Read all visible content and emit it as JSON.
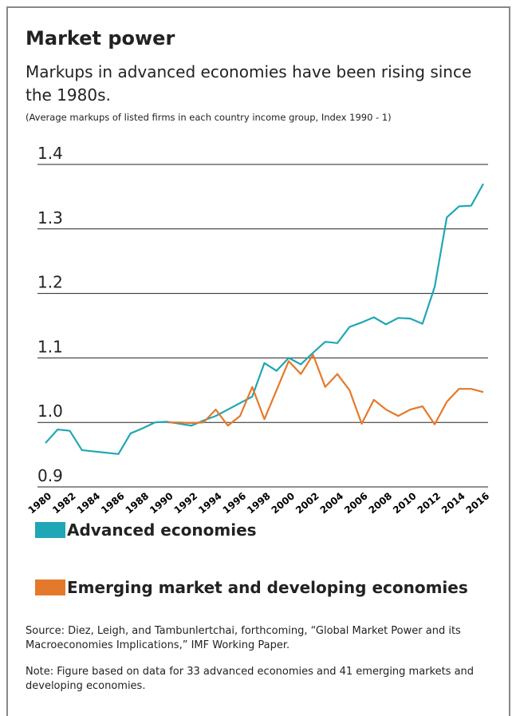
{
  "chart_data": {
    "type": "line",
    "title": "Market power",
    "subtitle": "Markups in advanced economies have been rising since the 1980s.",
    "note": "(Average markups of listed firms in each country income group, Index 1990 - 1)",
    "x": [
      1980,
      1981,
      1982,
      1983,
      1984,
      1985,
      1986,
      1987,
      1988,
      1989,
      1990,
      1991,
      1992,
      1993,
      1994,
      1995,
      1996,
      1997,
      1998,
      1999,
      2000,
      2001,
      2002,
      2003,
      2004,
      2005,
      2006,
      2007,
      2008,
      2009,
      2010,
      2011,
      2012,
      2013,
      2014,
      2015,
      2016
    ],
    "xlim": [
      1980,
      2016
    ],
    "xticks": [
      1980,
      1982,
      1984,
      1986,
      1988,
      1990,
      1992,
      1994,
      1996,
      1998,
      2000,
      2002,
      2004,
      2006,
      2008,
      2010,
      2012,
      2014,
      2016
    ],
    "ylim": [
      0.9,
      1.4
    ],
    "yticks": [
      0.9,
      {
        "value": 1,
        "label": "1.0"
      },
      1.1,
      1.2,
      1.3,
      1.4
    ],
    "grid": true,
    "series": [
      {
        "name": "Advanced economies",
        "color": "#1fa7b5",
        "values": [
          0.968,
          0.989,
          0.987,
          0.957,
          0.955,
          0.953,
          0.951,
          0.983,
          0.991,
          1.0,
          1.001,
          0.998,
          0.995,
          1.003,
          1.01,
          1.02,
          1.03,
          1.04,
          1.092,
          1.08,
          1.1,
          1.09,
          1.108,
          1.125,
          1.123,
          1.148,
          1.155,
          1.163,
          1.152,
          1.162,
          1.161,
          1.153,
          1.21,
          1.318,
          1.335,
          1.336,
          1.37
        ]
      },
      {
        "name": "Emerging market and developing economies",
        "color": "#e5792b",
        "values": [
          null,
          null,
          null,
          null,
          null,
          null,
          null,
          null,
          null,
          null,
          1.0,
          1.0,
          0.999,
          1.0,
          1.02,
          0.995,
          1.01,
          1.055,
          1.005,
          1.05,
          1.095,
          1.075,
          1.105,
          1.055,
          1.075,
          1.05,
          0.998,
          1.035,
          1.02,
          1.01,
          1.02,
          1.025,
          0.997,
          1.032,
          1.052,
          1.052,
          1.047
        ]
      }
    ],
    "source": "Source: Diez, Leigh, and Tambunlertchai, forthcoming, “Global Market Power and its Macroeconomies Implications,” IMF Working Paper.",
    "footnote": "Note: Figure based on data for 33 advanced economies and 41 emerging markets and developing economies."
  }
}
